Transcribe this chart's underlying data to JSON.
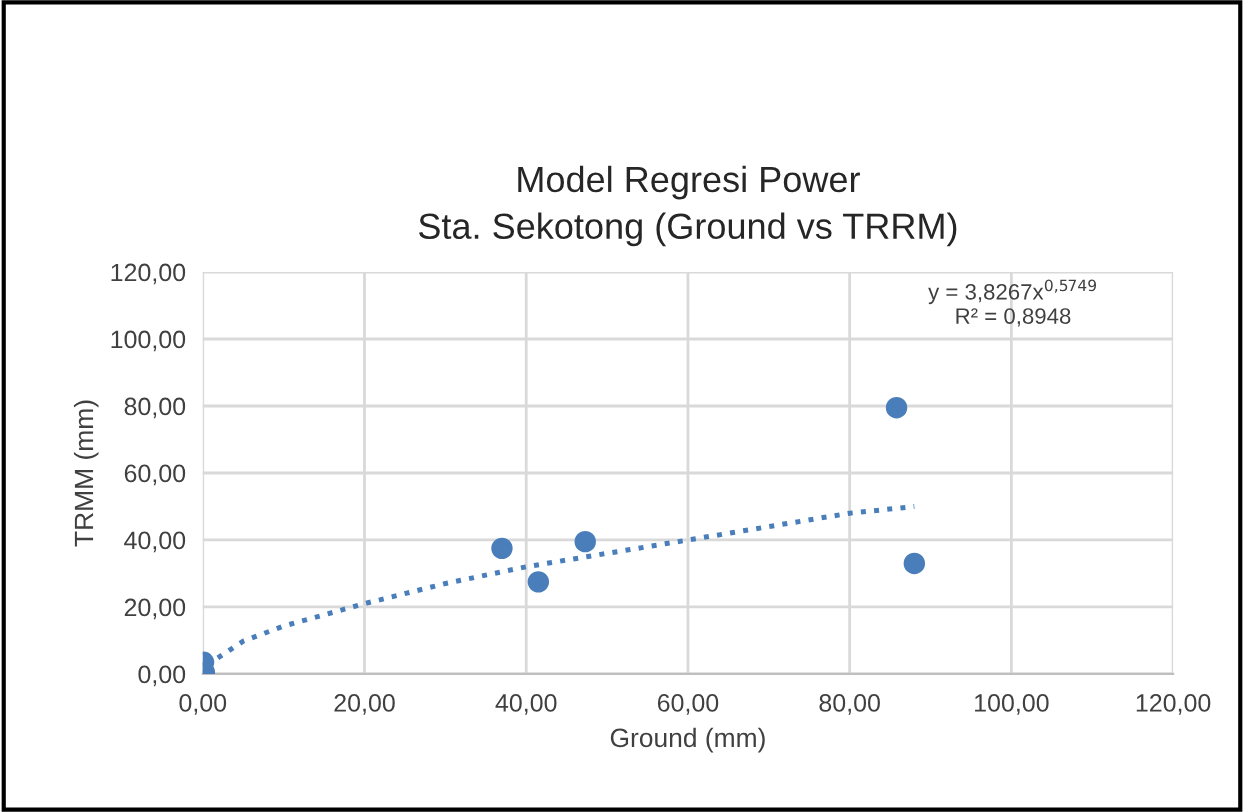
{
  "chart_data": {
    "type": "scatter",
    "title": "Model Regresi Power\nSta. Sekotong (Ground vs TRRM)",
    "xlabel": "Ground (mm)",
    "ylabel": "TRMM (mm)",
    "series": [
      {
        "color": "#4a7ebb",
        "marker": "circle",
        "x": [
          0.1,
          0.2,
          37,
          41.5,
          47.3,
          85.8,
          88
        ],
        "values": [
          3.5,
          0.5,
          37.5,
          27.5,
          39.5,
          79.5,
          33
        ]
      },
      {
        "type": "line",
        "color": "#4a7ebb",
        "line_style": "dotted",
        "marker": "none",
        "x": [
          0.5,
          5,
          10,
          20,
          30,
          40,
          50,
          60,
          70,
          80,
          88
        ],
        "values": [
          2.6,
          9.8,
          14.3,
          21,
          27,
          32,
          36,
          40,
          44,
          48,
          50
        ]
      }
    ],
    "annotations": [
      "y = 3,8267x$^{0,5749}$\nR² = 0,8948"
    ],
    "xlim": [
      0,
      120
    ],
    "ylim": [
      0,
      120
    ],
    "xticks": [
      {
        "value": 0,
        "label": "0,00"
      },
      {
        "value": 20,
        "label": "20,00"
      },
      {
        "value": 40,
        "label": "40,00"
      },
      {
        "value": 60,
        "label": "60,00"
      },
      {
        "value": 80,
        "label": "80,00"
      },
      {
        "value": 100,
        "label": "100,00"
      },
      {
        "value": 120,
        "label": "120,00"
      }
    ],
    "yticks": [
      {
        "value": 0,
        "label": "0,00"
      },
      {
        "value": 20,
        "label": "20,00"
      },
      {
        "value": 40,
        "label": "40,00"
      },
      {
        "value": 60,
        "label": "60,00"
      },
      {
        "value": 80,
        "label": "80,00"
      },
      {
        "value": 100,
        "label": "100,00"
      },
      {
        "value": 120,
        "label": "120,00"
      }
    ],
    "grid": true,
    "legend": false
  }
}
